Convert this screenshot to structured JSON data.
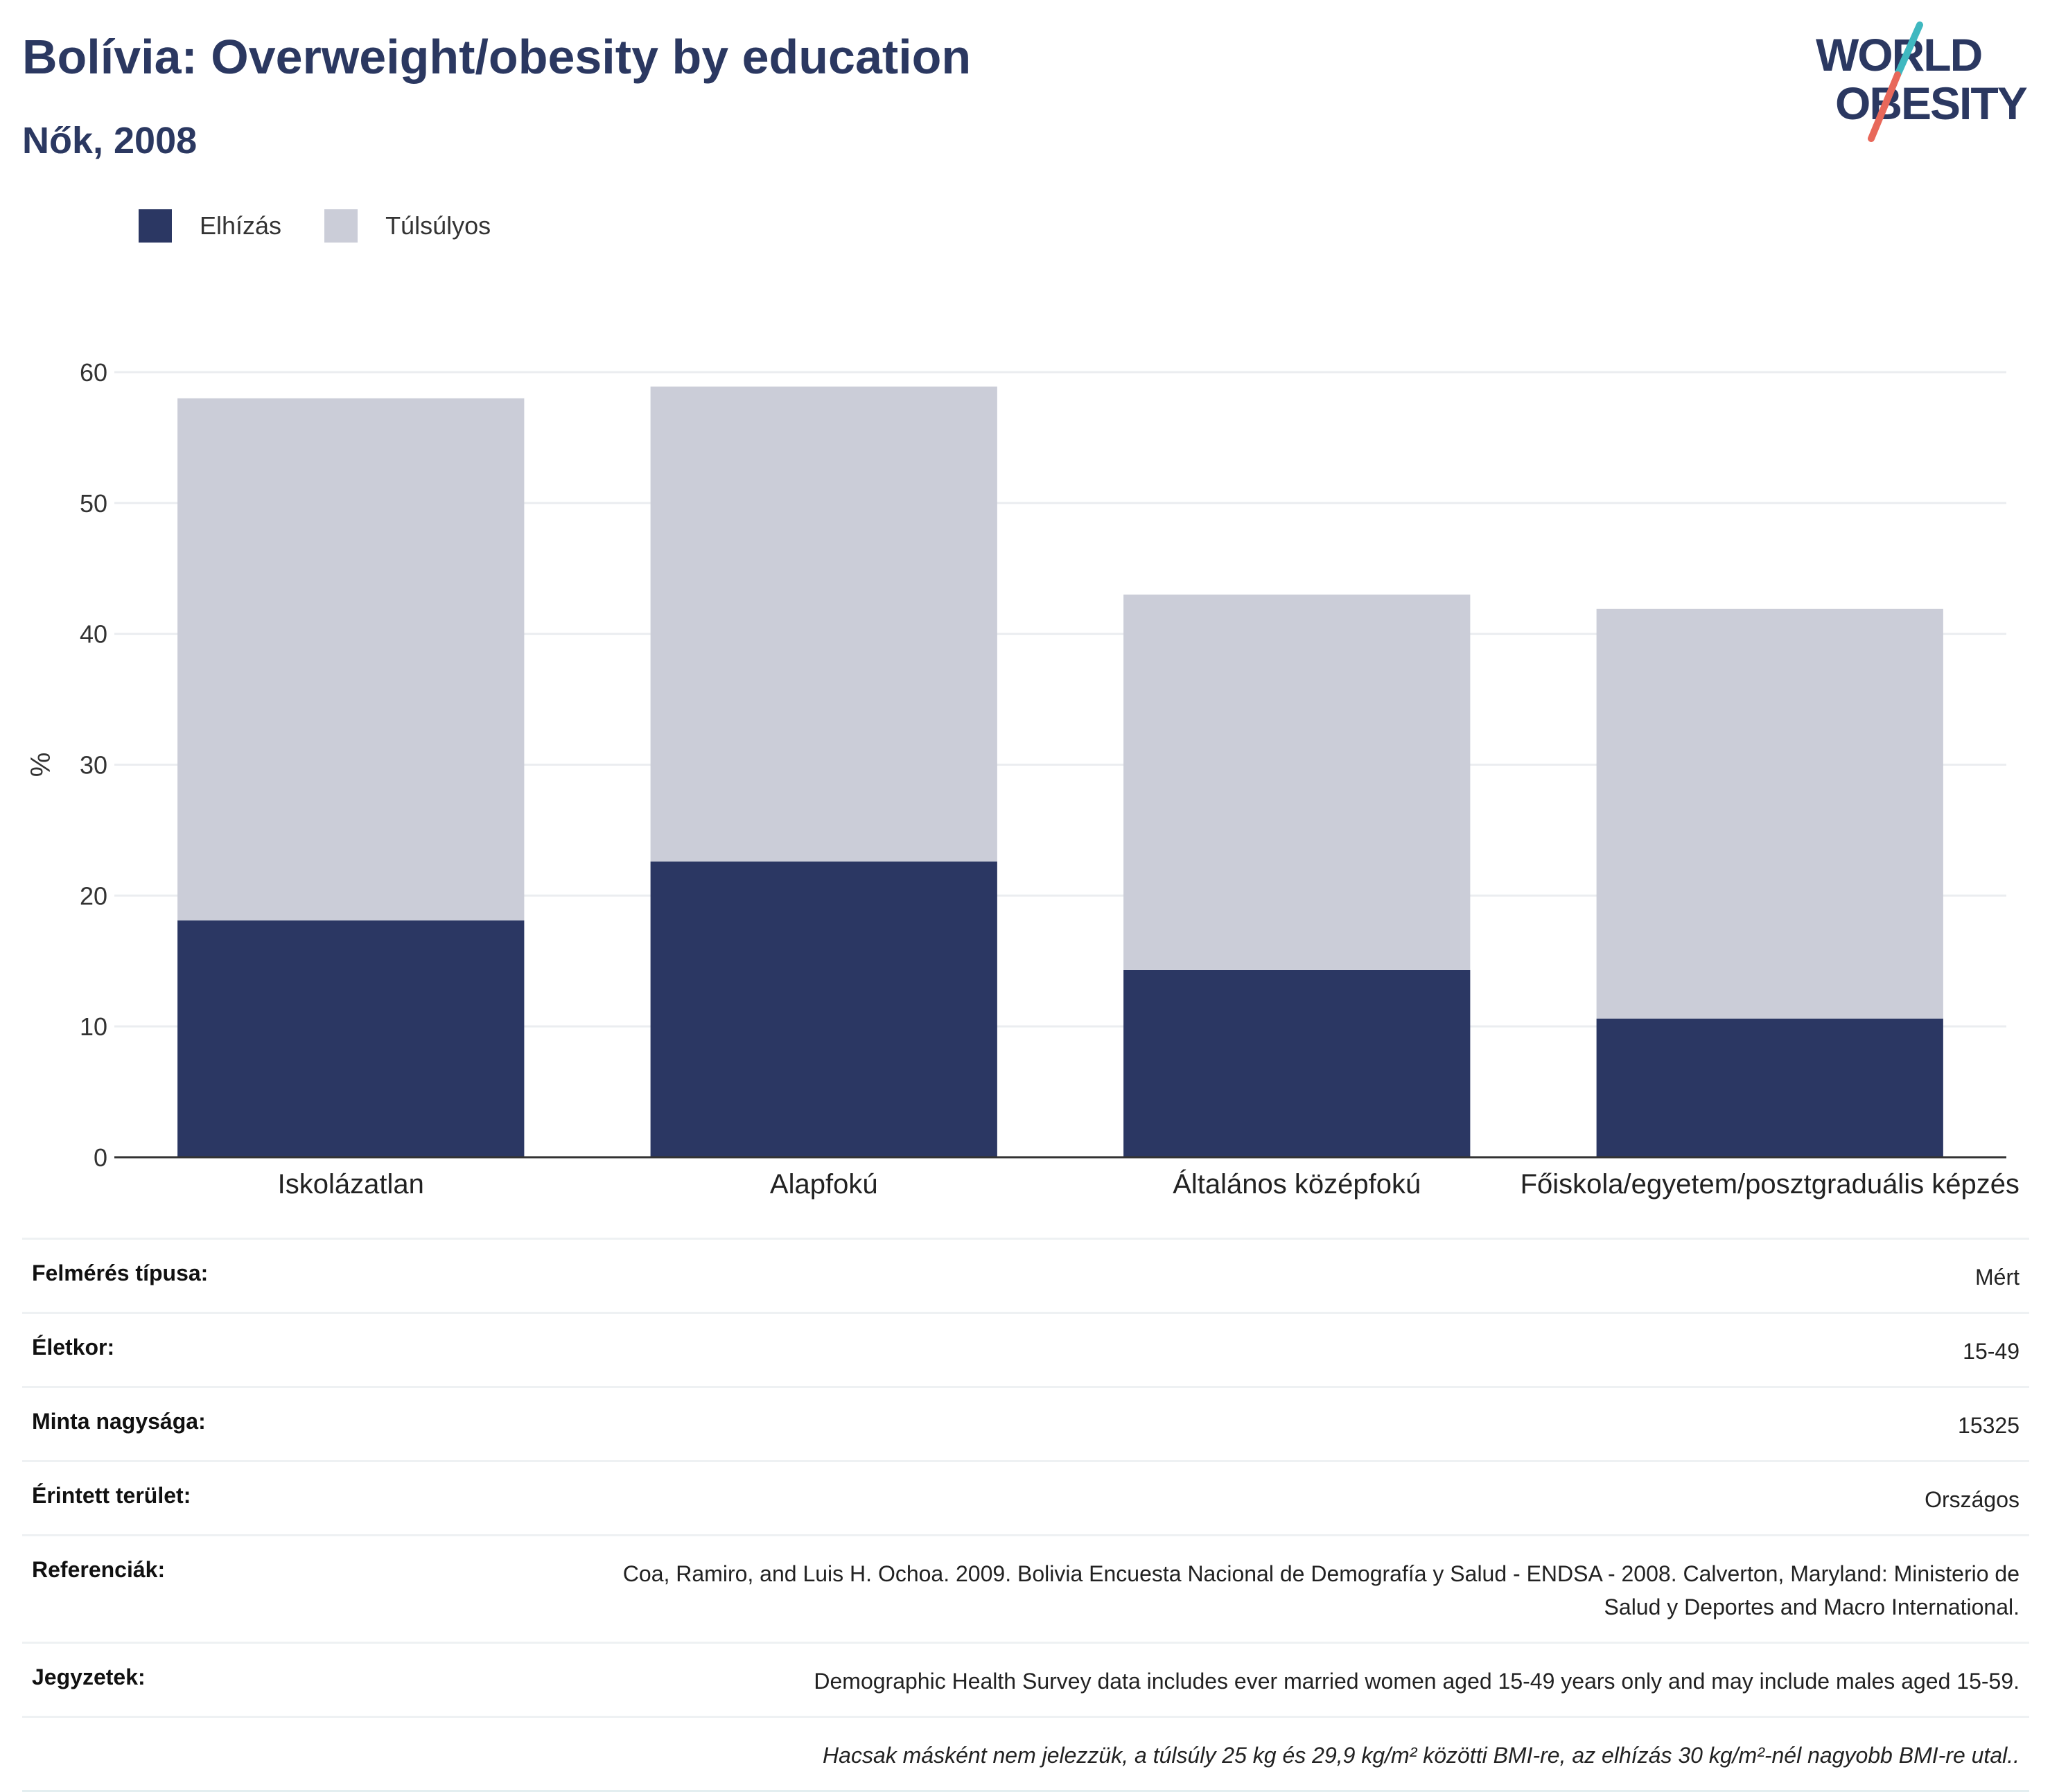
{
  "header": {
    "title": "Bolívia: Overweight/obesity by education",
    "subtitle": "Nők, 2008"
  },
  "logo": {
    "line1": "WORLD",
    "line2": "OBESITY",
    "colors": {
      "text": "#2b3861",
      "slash_red": "#e8685a",
      "slash_teal": "#3fb8c0"
    }
  },
  "colors": {
    "obesity": "#2b3763",
    "overweight": "#cbcdd8",
    "grid": "#ebedf0",
    "axis": "#333333"
  },
  "legend": {
    "items": [
      {
        "label": "Elhízás",
        "color": "#2b3763"
      },
      {
        "label": "Túlsúlyos",
        "color": "#cbcdd8"
      }
    ]
  },
  "chart_data": {
    "type": "bar",
    "stacked": true,
    "categories": [
      "Iskolázatlan",
      "Alapfokú",
      "Általános középfokú",
      "Főiskola/egyetem/posztgraduális képzés"
    ],
    "series": [
      {
        "name": "Elhízás",
        "values": [
          18.1,
          22.6,
          14.3,
          10.6
        ]
      },
      {
        "name": "Túlsúlyos",
        "values": [
          39.9,
          36.3,
          28.7,
          31.3
        ]
      }
    ],
    "ylabel": "%",
    "ylim": [
      0,
      60
    ],
    "yticks": [
      0,
      10,
      20,
      30,
      40,
      50,
      60
    ],
    "grid": true,
    "legend_position": "top-left"
  },
  "meta": {
    "rows": [
      {
        "key": "Felmérés típusa:",
        "value": "Mért"
      },
      {
        "key": "Életkor:",
        "value": "15-49"
      },
      {
        "key": "Minta nagysága:",
        "value": "15325"
      },
      {
        "key": "Érintett terület:",
        "value": "Országos"
      },
      {
        "key": "Referenciák:",
        "value": "Coa, Ramiro, and Luis H. Ochoa. 2009. Bolivia Encuesta Nacional de Demografía y Salud - ENDSA - 2008. Calverton, Maryland: Ministerio de Salud y Deportes and Macro International."
      },
      {
        "key": "Jegyzetek:",
        "value": "Demographic Health Survey data includes ever married women aged 15-49 years only and may include males aged 15-59."
      }
    ],
    "footnote": "Hacsak másként nem jelezzük, a túlsúly 25 kg és 29,9 kg/m² közötti BMI-re, az elhízás 30 kg/m²-nél nagyobb BMI-re utal.."
  }
}
